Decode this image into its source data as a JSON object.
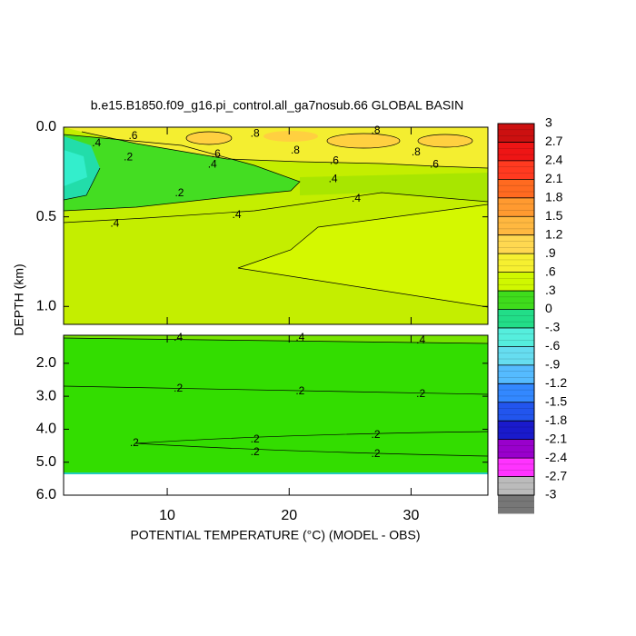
{
  "chart_data": {
    "type": "contour",
    "title": "b.e15.B1850.f09_g16.pi_control.all_ga7nosub.66 GLOBAL BASIN",
    "x_label": "POTENTIAL TEMPERATURE (°C) (MODEL - OBS)",
    "y_label": "DEPTH (km)",
    "xlim": [
      1.5,
      36.3
    ],
    "xticks": [
      10,
      20,
      30
    ],
    "panels": [
      {
        "ylim": [
          0,
          1.1
        ],
        "yticks": [
          {
            "value": 0,
            "label": "0.0"
          },
          {
            "value": 0.5,
            "label": "0.5"
          },
          {
            "value": 1,
            "label": "1.0"
          }
        ]
      },
      {
        "ylim": [
          1.15,
          6
        ],
        "yticks": [
          {
            "value": 2,
            "label": "2.0"
          },
          {
            "value": 3,
            "label": "3.0"
          },
          {
            "value": 4,
            "label": "4.0"
          },
          {
            "value": 5,
            "label": "5.0"
          },
          {
            "value": 6,
            "label": "6.0"
          }
        ]
      }
    ],
    "colorbar": {
      "ticks": [
        3,
        2.7,
        2.4,
        2.1,
        1.8,
        1.5,
        1.2,
        {
          "value": 0.9,
          "label": ".9"
        },
        {
          "value": 0.6,
          "label": ".6"
        },
        {
          "value": 0.3,
          "label": ".3"
        },
        0,
        {
          "value": -0.3,
          "label": "-.3"
        },
        {
          "value": -0.6,
          "label": "-.6"
        },
        {
          "value": -0.9,
          "label": "-.9"
        },
        -1.2,
        -1.5,
        -1.8,
        -2.1,
        -2.4,
        -2.7,
        -3
      ],
      "colors": [
        "#cc1010",
        "#ee1515",
        "#ff3a20",
        "#ff6a20",
        "#ff9a30",
        "#ffb840",
        "#ffd850",
        "#f6f030",
        "#d0f800",
        "#3fdc1c",
        "#22dd88",
        "#55eedd",
        "#66ddf0",
        "#55bbff",
        "#3388ff",
        "#2255ee",
        "#1a1acc",
        "#9900cc",
        "#ff33ff",
        "#bbbbbb",
        "#777777"
      ]
    },
    "contour_labels": [
      {
        "value": 0.6,
        "label": ".6",
        "x": 7.2,
        "depth": 0.05
      },
      {
        "value": 0.8,
        "label": ".8",
        "x": 17.2,
        "depth": 0.036
      },
      {
        "value": 0.8,
        "label": ".8",
        "x": 20.5,
        "depth": 0.13
      },
      {
        "value": 0.6,
        "label": ".6",
        "x": 14.0,
        "depth": 0.15
      },
      {
        "value": 0.2,
        "label": ".2",
        "x": 6.8,
        "depth": 0.17
      },
      {
        "value": 0.4,
        "label": ".4",
        "x": 4.2,
        "depth": 0.09
      },
      {
        "value": 0.4,
        "label": ".4",
        "x": 13.7,
        "depth": 0.21
      },
      {
        "value": 0.6,
        "label": ".6",
        "x": 23.7,
        "depth": 0.19
      },
      {
        "value": 0.8,
        "label": ".8",
        "x": 27.1,
        "depth": 0.02
      },
      {
        "value": 0.8,
        "label": ".8",
        "x": 30.4,
        "depth": 0.14
      },
      {
        "value": 0.6,
        "label": ".6",
        "x": 31.9,
        "depth": 0.21
      },
      {
        "value": 0.4,
        "label": ".4",
        "x": 23.6,
        "depth": 0.29
      },
      {
        "value": 0.2,
        "label": ".2",
        "x": 11.0,
        "depth": 0.37
      },
      {
        "value": 0.4,
        "label": ".4",
        "x": 25.5,
        "depth": 0.4
      },
      {
        "value": 0.4,
        "label": ".4",
        "x": 15.7,
        "depth": 0.49
      },
      {
        "value": 0.4,
        "label": ".4",
        "x": 5.7,
        "depth": 0.54
      },
      {
        "value": 0.4,
        "label": ".4",
        "x": 10.9,
        "depth": 1.23
      },
      {
        "value": 0.4,
        "label": ".4",
        "x": 20.9,
        "depth": 1.23
      },
      {
        "value": 0.4,
        "label": ".4",
        "x": 30.8,
        "depth": 1.31
      },
      {
        "value": 0.2,
        "label": ".2",
        "x": 10.9,
        "depth": 2.77
      },
      {
        "value": 0.2,
        "label": ".2",
        "x": 20.9,
        "depth": 2.86
      },
      {
        "value": 0.2,
        "label": ".2",
        "x": 30.8,
        "depth": 2.94
      },
      {
        "value": 0.2,
        "label": ".2",
        "x": 7.3,
        "depth": 4.43
      },
      {
        "value": 0.2,
        "label": ".2",
        "x": 17.2,
        "depth": 4.32
      },
      {
        "value": 0.2,
        "label": ".2",
        "x": 27.1,
        "depth": 4.18
      },
      {
        "value": 0.2,
        "label": ".2",
        "x": 17.2,
        "depth": 4.7
      },
      {
        "value": 0.2,
        "label": ".2",
        "x": 27.1,
        "depth": 4.76
      }
    ]
  }
}
